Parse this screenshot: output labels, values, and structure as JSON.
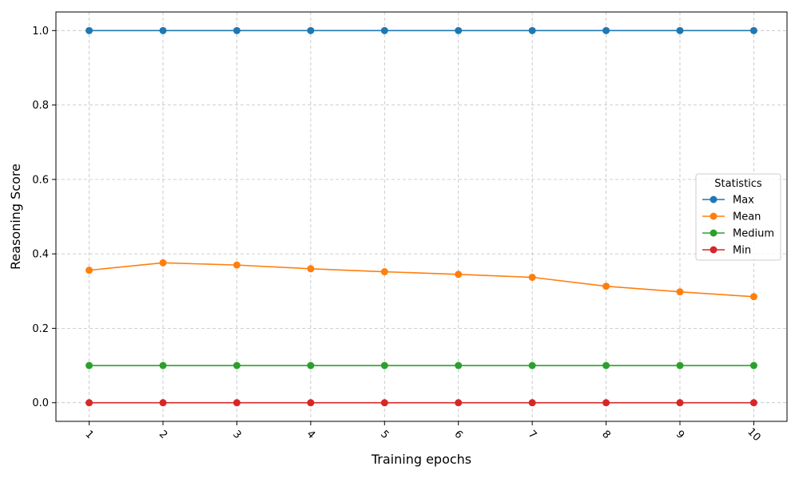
{
  "chart_data": {
    "type": "line",
    "title": "",
    "xlabel": "Training epochs",
    "ylabel": "Reasoning Score",
    "x": [
      1,
      2,
      3,
      4,
      5,
      6,
      7,
      8,
      9,
      10
    ],
    "x_tick_labels": [
      "1",
      "2",
      "3",
      "4",
      "5",
      "6",
      "7",
      "8",
      "9",
      "10"
    ],
    "x_tick_rotation_deg": 45,
    "y_ticks": [
      0.0,
      0.2,
      0.4,
      0.6,
      0.8,
      1.0
    ],
    "y_tick_labels": [
      "0.0",
      "0.2",
      "0.4",
      "0.6",
      "0.8",
      "1.0"
    ],
    "xlim": [
      0.55,
      10.45
    ],
    "ylim": [
      -0.05,
      1.05
    ],
    "grid": true,
    "legend": {
      "title": "Statistics",
      "placement": "center-right"
    },
    "series": [
      {
        "name": "Max",
        "color": "#1f77b4",
        "values": [
          1.0,
          1.0,
          1.0,
          1.0,
          1.0,
          1.0,
          1.0,
          1.0,
          1.0,
          1.0
        ]
      },
      {
        "name": "Mean",
        "color": "#ff7f0e",
        "values": [
          0.356,
          0.376,
          0.37,
          0.36,
          0.352,
          0.345,
          0.337,
          0.313,
          0.298,
          0.285
        ]
      },
      {
        "name": "Medium",
        "color": "#2ca02c",
        "values": [
          0.1,
          0.1,
          0.1,
          0.1,
          0.1,
          0.1,
          0.1,
          0.1,
          0.1,
          0.1
        ]
      },
      {
        "name": "Min",
        "color": "#d62728",
        "values": [
          0.0,
          0.0,
          0.0,
          0.0,
          0.0,
          0.0,
          0.0,
          0.0,
          0.0,
          0.0
        ]
      }
    ]
  }
}
